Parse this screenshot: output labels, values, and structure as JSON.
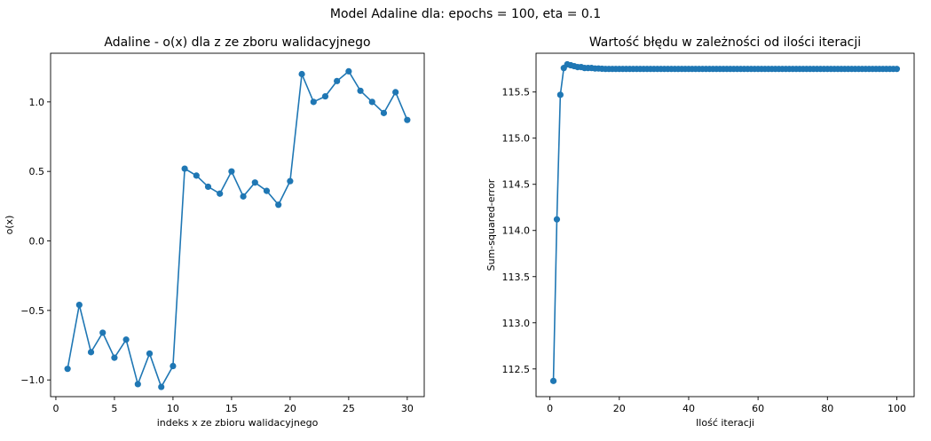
{
  "suptitle": "Model Adaline dla: epochs = 100, eta = 0.1",
  "colors": {
    "series": "#1f77b4"
  },
  "chart_data": [
    {
      "type": "line",
      "markers": true,
      "title": "Adaline - o(x) dla z ze zboru walidacyjnego",
      "xlabel": "indeks x ze zbioru walidacyjnego",
      "ylabel": "o(x)",
      "xlim": [
        -0.45,
        31.45
      ],
      "ylim": [
        -1.12,
        1.35
      ],
      "xticks": [
        0,
        5,
        10,
        15,
        20,
        25,
        30
      ],
      "xtick_labels": [
        "0",
        "5",
        "10",
        "15",
        "20",
        "25",
        "30"
      ],
      "yticks": [
        -1.0,
        -0.5,
        0.0,
        0.5,
        1.0
      ],
      "ytick_labels": [
        "−1.0",
        "−0.5",
        "0.0",
        "0.5",
        "1.0"
      ],
      "x": [
        1,
        2,
        3,
        4,
        5,
        6,
        7,
        8,
        9,
        10,
        11,
        12,
        13,
        14,
        15,
        16,
        17,
        18,
        19,
        20,
        21,
        22,
        23,
        24,
        25,
        26,
        27,
        28,
        29,
        30
      ],
      "y": [
        -0.92,
        -0.46,
        -0.8,
        -0.66,
        -0.84,
        -0.71,
        -1.03,
        -0.81,
        -1.05,
        -0.9,
        0.52,
        0.47,
        0.39,
        0.34,
        0.5,
        0.32,
        0.42,
        0.36,
        0.26,
        0.43,
        1.2,
        1.0,
        1.04,
        1.15,
        1.22,
        1.08,
        1.0,
        0.92,
        1.07,
        0.87
      ]
    },
    {
      "type": "line",
      "markers": true,
      "title": "Wartość błędu w zależności od ilości iteracji",
      "xlabel": "Ilość iteracji",
      "ylabel": "Sum-squared-error",
      "xlim": [
        -4.0,
        105.0
      ],
      "ylim": [
        112.2,
        115.92
      ],
      "xticks": [
        0,
        20,
        40,
        60,
        80,
        100
      ],
      "xtick_labels": [
        "0",
        "20",
        "40",
        "60",
        "80",
        "100"
      ],
      "yticks": [
        112.5,
        113.0,
        113.5,
        114.0,
        114.5,
        115.0,
        115.5
      ],
      "ytick_labels": [
        "112.5",
        "113.0",
        "113.5",
        "114.0",
        "114.5",
        "115.0",
        "115.5"
      ],
      "x_range": [
        1,
        100
      ],
      "y_head": [
        112.37,
        114.12,
        115.47,
        115.76,
        115.8,
        115.79,
        115.78,
        115.77,
        115.77,
        115.76,
        115.76,
        115.76,
        115.755,
        115.755,
        115.752
      ],
      "y_tail": 115.75
    }
  ]
}
